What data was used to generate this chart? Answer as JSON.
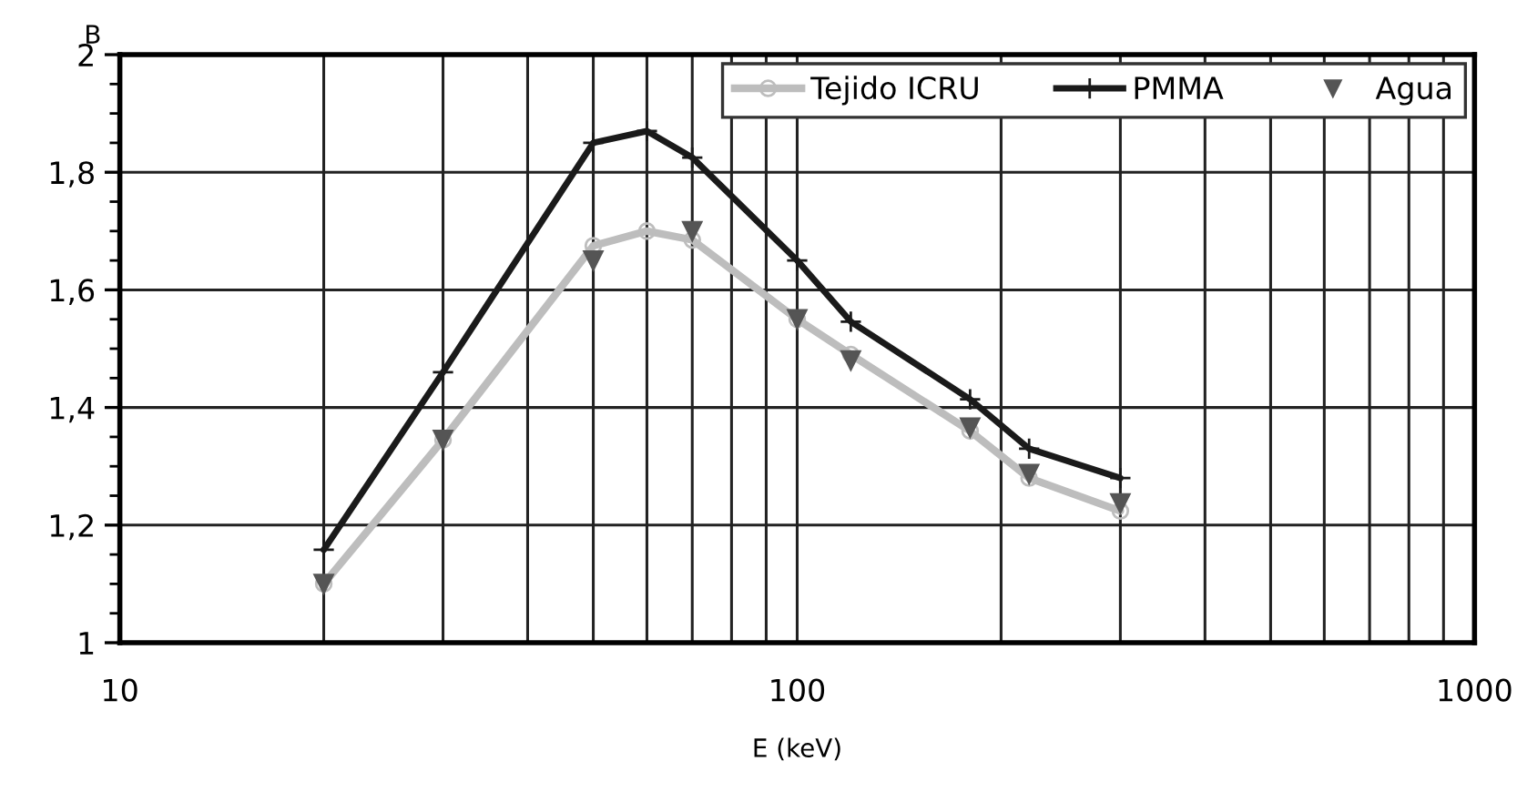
{
  "chart_data": {
    "type": "line",
    "ylabel": "B",
    "xlabel": "E (keV)",
    "xlim": [
      10,
      1000
    ],
    "xticks": [
      10,
      100,
      1000
    ],
    "log": "x",
    "ylim": [
      1,
      2
    ],
    "yticks": [
      {
        "value": 1,
        "label": "1"
      },
      {
        "value": 1.05,
        "label": null
      },
      {
        "value": 1.1,
        "label": null
      },
      {
        "value": 1.15,
        "label": null
      },
      {
        "value": 1.2,
        "label": "1,2"
      },
      {
        "value": 1.25,
        "label": null
      },
      {
        "value": 1.3,
        "label": null
      },
      {
        "value": 1.35,
        "label": null
      },
      {
        "value": 1.4,
        "label": "1,4"
      },
      {
        "value": 1.45,
        "label": null
      },
      {
        "value": 1.5,
        "label": null
      },
      {
        "value": 1.55,
        "label": null
      },
      {
        "value": 1.6,
        "label": "1,6"
      },
      {
        "value": 1.65,
        "label": null
      },
      {
        "value": 1.7,
        "label": null
      },
      {
        "value": 1.75,
        "label": null
      },
      {
        "value": 1.8,
        "label": "1,8"
      },
      {
        "value": 1.85,
        "label": null
      },
      {
        "value": 1.9,
        "label": null
      },
      {
        "value": 1.95,
        "label": null
      },
      {
        "value": 2,
        "label": "2"
      }
    ],
    "grid": true,
    "legend": "top right",
    "series": [
      {
        "name": "Tejido ICRU",
        "color": "#bdbdbd",
        "marker": "circle",
        "x": [
          20,
          30,
          50,
          60,
          70,
          100,
          120,
          180,
          220,
          300
        ],
        "values": [
          1.1,
          1.345,
          1.675,
          1.7,
          1.685,
          1.55,
          1.49,
          1.36,
          1.28,
          1.224
        ]
      },
      {
        "name": "PMMA",
        "color": "#1a1a1a",
        "marker": "cross",
        "x": [
          20,
          30,
          50,
          60,
          70,
          100,
          120,
          180,
          220,
          300
        ],
        "values": [
          1.158,
          1.46,
          1.85,
          1.87,
          1.825,
          1.65,
          1.546,
          1.414,
          1.33,
          1.28
        ]
      },
      {
        "name": "Agua",
        "type": "scatter",
        "color": "#555555",
        "marker": "triangle",
        "x": [
          20,
          30,
          50,
          70,
          100,
          120,
          180,
          220,
          300
        ],
        "values": [
          1.1,
          1.345,
          1.65,
          1.7,
          1.55,
          1.48,
          1.366,
          1.287,
          1.237
        ]
      }
    ]
  }
}
